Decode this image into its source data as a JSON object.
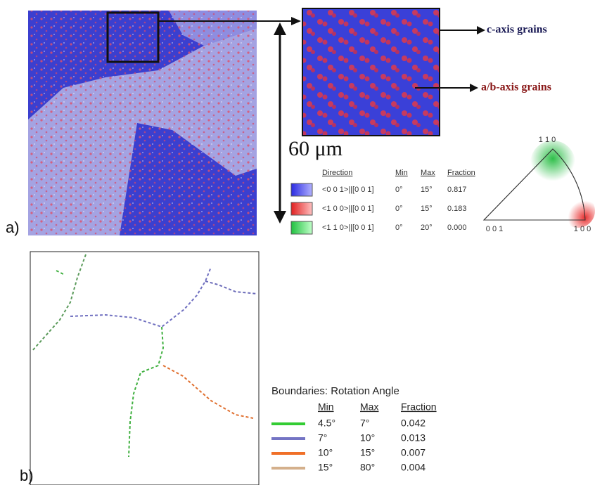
{
  "panel_a": {
    "label": "a)",
    "callouts": [
      "c-axis grains",
      "a/b-axis grains"
    ],
    "scale": "60 μm",
    "table": {
      "headers": [
        "Direction",
        "Min",
        "Max",
        "Fraction"
      ],
      "rows": [
        [
          "<0 0 1>||[0 0 1]",
          "0°",
          "15°",
          "0.817"
        ],
        [
          "<1 0 0>||[0 0 1]",
          "0°",
          "15°",
          "0.183"
        ],
        [
          "<1 1 0>||[0 0 1]",
          "0°",
          "20°",
          "0.000"
        ]
      ]
    },
    "triangle": [
      "1 1 0",
      "0 0 1",
      "1 0 0"
    ]
  },
  "panel_b": {
    "label": "b)",
    "title": "Boundaries: Rotation Angle",
    "table": {
      "headers": [
        "Min",
        "Max",
        "Fraction"
      ],
      "rows": [
        [
          "4.5°",
          "7°",
          "0.042"
        ],
        [
          "7°",
          "10°",
          "0.013"
        ],
        [
          "10°",
          "15°",
          "0.007"
        ],
        [
          "15°",
          "80°",
          "0.004"
        ]
      ]
    }
  }
}
